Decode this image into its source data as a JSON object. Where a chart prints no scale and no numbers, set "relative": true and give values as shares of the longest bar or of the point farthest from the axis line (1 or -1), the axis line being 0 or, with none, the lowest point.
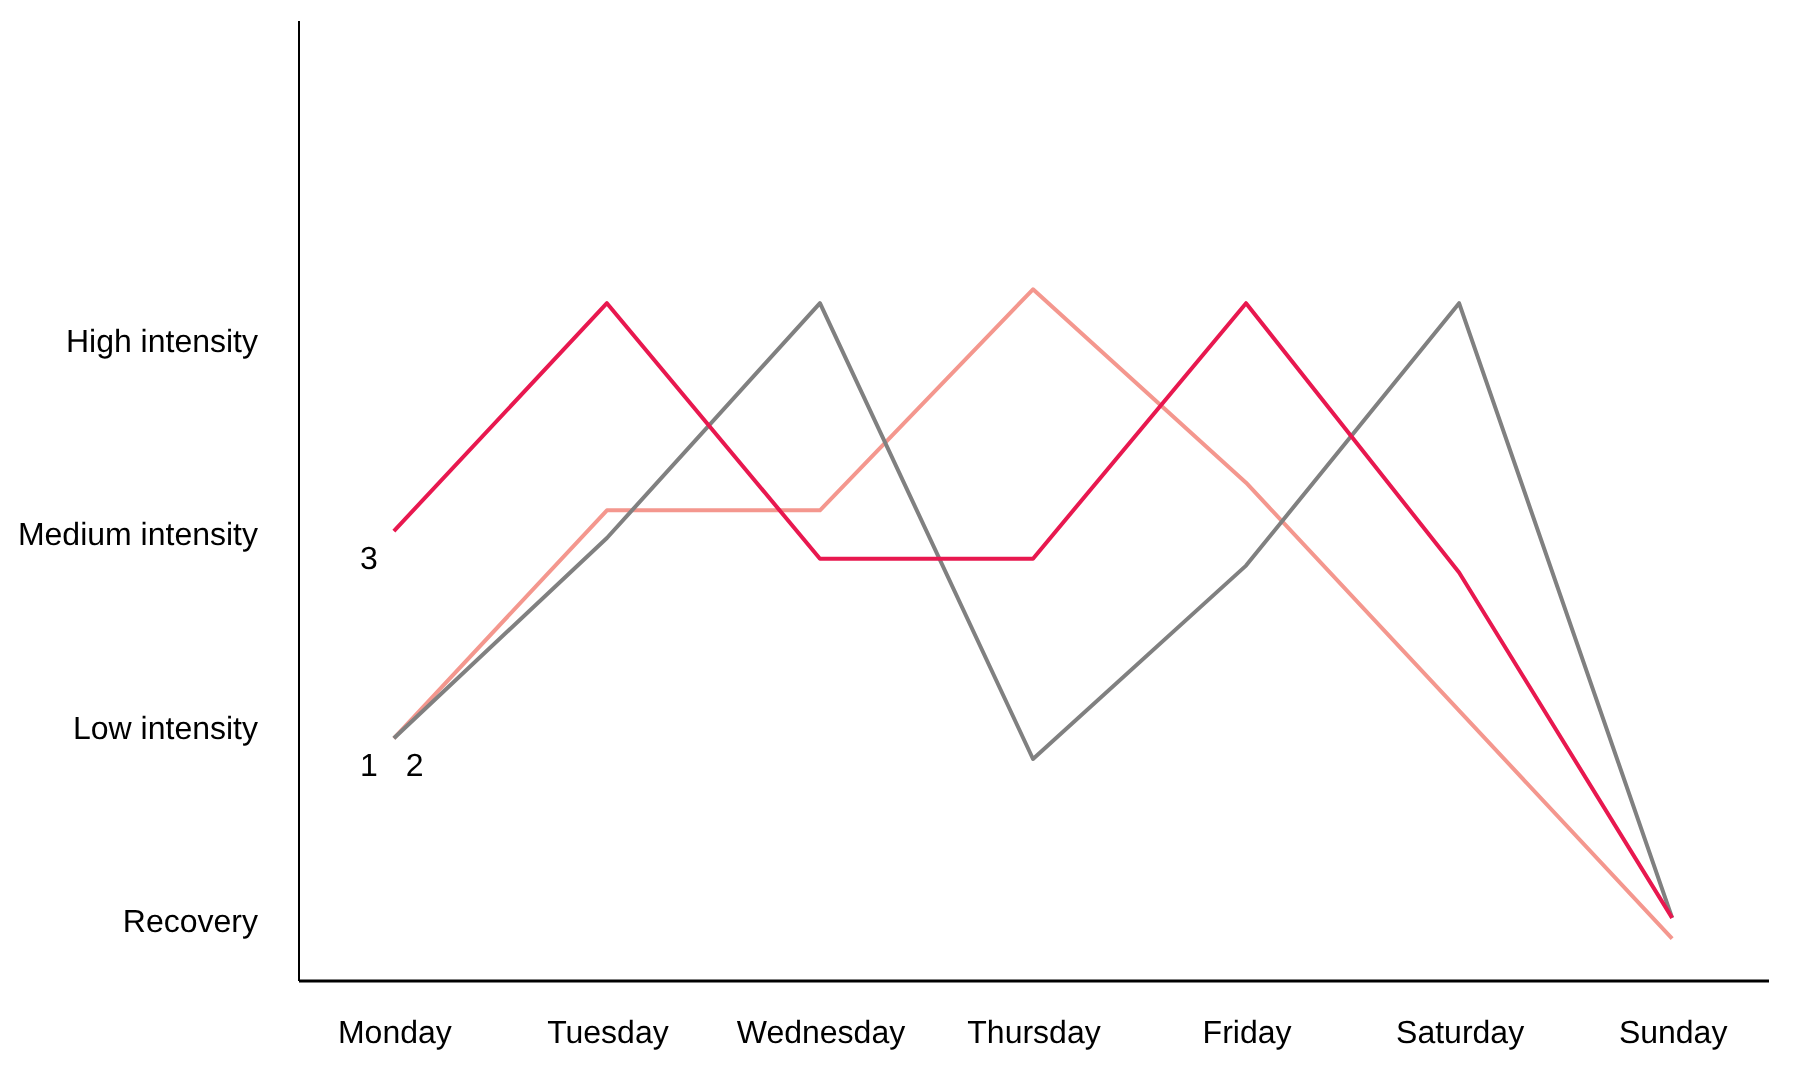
{
  "chart_data": {
    "type": "line",
    "relative": true,
    "categories": [
      "Monday",
      "Tuesday",
      "Wednesday",
      "Thursday",
      "Friday",
      "Saturday",
      "Sunday"
    ],
    "series": [
      {
        "name": "1",
        "color": "#f4978e",
        "values": [
          0.35,
          0.68,
          0.68,
          1.0,
          0.72,
          0.39,
          0.06
        ]
      },
      {
        "name": "2",
        "color": "#808080",
        "values": [
          0.35,
          0.64,
          0.98,
          0.32,
          0.6,
          0.98,
          0.09
        ]
      },
      {
        "name": "3",
        "color": "#e8184f",
        "values": [
          0.65,
          0.98,
          0.61,
          0.61,
          0.98,
          0.59,
          0.09
        ]
      }
    ],
    "annotations": [
      "High intensity",
      "Medium intensity",
      "Low intensity",
      "Recovery"
    ],
    "grid": false,
    "legend": false,
    "line_style": "solid"
  }
}
